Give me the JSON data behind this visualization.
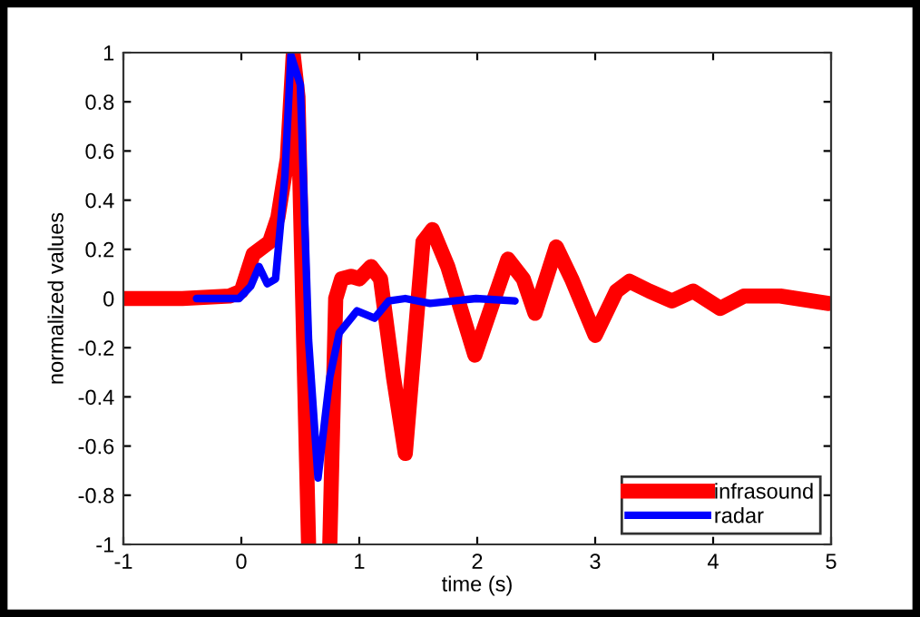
{
  "chart_data": {
    "type": "line",
    "xlabel": "time (s)",
    "ylabel": "normalized values",
    "xlim": [
      -1,
      5
    ],
    "ylim": [
      -1,
      1
    ],
    "xticks": [
      -1,
      0,
      1,
      2,
      3,
      4,
      5
    ],
    "yticks": [
      -1,
      -0.8,
      -0.6,
      -0.4,
      -0.2,
      0,
      0.2,
      0.4,
      0.6,
      0.8,
      1
    ],
    "grid": false,
    "legend": "bottom right",
    "marker": "none",
    "line_style": "solid",
    "series": [
      {
        "name": "infrasound",
        "color": "#ff0000",
        "x": [
          -1,
          -0.5,
          -0.1,
          0.0,
          0.1,
          0.24,
          0.31,
          0.39,
          0.44,
          0.48,
          0.52,
          0.57,
          0.65,
          0.75,
          0.8,
          0.85,
          0.93,
          1.0,
          1.1,
          1.18,
          1.29,
          1.39,
          1.54,
          1.62,
          1.75,
          1.98,
          2.13,
          2.26,
          2.39,
          2.49,
          2.67,
          2.8,
          3.0,
          3.18,
          3.29,
          3.46,
          3.65,
          3.83,
          4.06,
          4.26,
          4.57,
          4.98
        ],
        "values": [
          0,
          0,
          0.01,
          0.03,
          0.18,
          0.23,
          0.33,
          0.57,
          0.99,
          0.82,
          0,
          -1,
          null,
          -1,
          0,
          0.08,
          0.09,
          0.08,
          0.13,
          0.08,
          -0.32,
          -0.63,
          0.23,
          0.28,
          0.13,
          -0.23,
          -0.02,
          0.16,
          0.08,
          -0.06,
          0.21,
          0.08,
          -0.15,
          0.03,
          0.07,
          0.03,
          -0.01,
          0.03,
          -0.04,
          0.01,
          0.01,
          -0.02
        ]
      },
      {
        "name": "radar",
        "color": "#0000ff",
        "x": [
          -0.38,
          -0.02,
          0.08,
          0.15,
          0.22,
          0.29,
          0.37,
          0.42,
          0.5,
          0.57,
          0.65,
          0.75,
          0.83,
          0.98,
          1.13,
          1.25,
          1.39,
          1.6,
          1.99,
          2.32
        ],
        "values": [
          0,
          0,
          0.05,
          0.13,
          0.06,
          0.08,
          0.5,
          0.99,
          0.87,
          -0.17,
          -0.73,
          -0.32,
          -0.14,
          -0.05,
          -0.08,
          -0.01,
          0,
          -0.02,
          0,
          -0.01
        ]
      }
    ]
  }
}
